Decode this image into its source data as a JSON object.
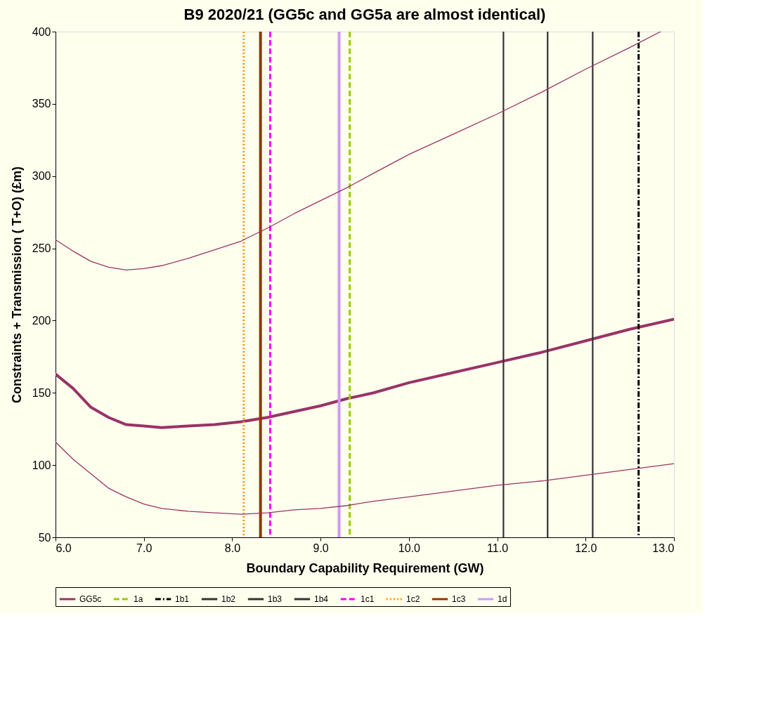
{
  "chart_data": {
    "type": "line",
    "title": "B9  2020/21  (GG5c and GG5a are almost identical)",
    "xlabel": "Boundary Capability Requirement  (GW)",
    "ylabel": "Constraints + Transmission ( T+O)  (£m)",
    "xlim": [
      6,
      13
    ],
    "xticks": [
      {
        "value": 6,
        "label": "6.0"
      },
      {
        "value": 7,
        "label": "7.0"
      },
      {
        "value": 8,
        "label": "8.0"
      },
      {
        "value": 9,
        "label": "9.0"
      },
      {
        "value": 10,
        "label": "10.0"
      },
      {
        "value": 11,
        "label": "11.0"
      },
      {
        "value": 12,
        "label": "12.0"
      },
      {
        "value": 13,
        "label": "13.0"
      }
    ],
    "ylim": [
      50,
      400
    ],
    "yticks": [
      50,
      100,
      150,
      200,
      250,
      300,
      350,
      400
    ],
    "grid": false,
    "legend": "bottom",
    "marker": "none",
    "series": [
      {
        "name": "GG5c",
        "color": "#993366",
        "x": [
          6.0,
          6.2,
          6.4,
          6.6,
          6.8,
          7.0,
          7.2,
          7.5,
          7.8,
          8.1,
          8.4,
          8.7,
          9.0,
          9.3,
          9.6,
          10.0,
          10.5,
          11.0,
          11.5,
          12.0,
          12.5,
          13.0
        ],
        "values": [
          163,
          153,
          140,
          133,
          128,
          127,
          126,
          127,
          128,
          130,
          133,
          137,
          141,
          146,
          150,
          157,
          164,
          171,
          178,
          186,
          194,
          201
        ]
      },
      {
        "color": "#993366",
        "x": [
          6.0,
          6.2,
          6.4,
          6.6,
          6.8,
          7.0,
          7.2,
          7.5,
          7.8,
          8.1,
          8.4,
          8.7,
          9.0,
          9.3,
          9.6,
          10.0,
          10.5,
          11.0,
          11.5,
          12.0,
          12.5,
          12.85
        ],
        "values": [
          256,
          248,
          241,
          237,
          235,
          236,
          238,
          243,
          249,
          255,
          264,
          274,
          283,
          292,
          302,
          315,
          329,
          343,
          358,
          374,
          389,
          400
        ]
      },
      {
        "color": "#993366",
        "x": [
          6.0,
          6.2,
          6.4,
          6.6,
          6.8,
          7.0,
          7.2,
          7.5,
          7.8,
          8.1,
          8.4,
          8.7,
          9.0,
          9.3,
          9.6,
          10.0,
          10.5,
          11.0,
          11.5,
          12.0,
          12.5,
          13.0
        ],
        "values": [
          116,
          104,
          94,
          84,
          78,
          73,
          70,
          68,
          67,
          66,
          67,
          69,
          70,
          72,
          75,
          78,
          82,
          86,
          89,
          93,
          97,
          101
        ]
      }
    ],
    "ref_lines": [
      {
        "axis": "x",
        "value": 9.33,
        "label": "1a",
        "color": "#99cc00",
        "line_style": "dashed"
      },
      {
        "axis": "x",
        "value": 12.6,
        "label": "1b1",
        "color": "#000000",
        "line_style": "dashdot"
      },
      {
        "axis": "x",
        "value": 12.08,
        "label": "1b2",
        "color": "#333333",
        "line_style": "solid"
      },
      {
        "axis": "x",
        "value": 11.57,
        "label": "1b3",
        "color": "#333333",
        "line_style": "solid"
      },
      {
        "axis": "x",
        "value": 11.07,
        "label": "1b4",
        "color": "#333333",
        "line_style": "solid"
      },
      {
        "axis": "x",
        "value": 8.43,
        "label": "1c1",
        "color": "#ff00ff",
        "line_style": "dashed"
      },
      {
        "axis": "x",
        "value": 8.13,
        "label": "1c2",
        "color": "#ff9900",
        "line_style": "dotted"
      },
      {
        "axis": "x",
        "value": 8.32,
        "label": "1c3",
        "color": "#993300",
        "line_style": "solid"
      },
      {
        "axis": "x",
        "value": 9.21,
        "label": "1d",
        "color": "#cc99ff",
        "line_style": "solid"
      }
    ]
  }
}
